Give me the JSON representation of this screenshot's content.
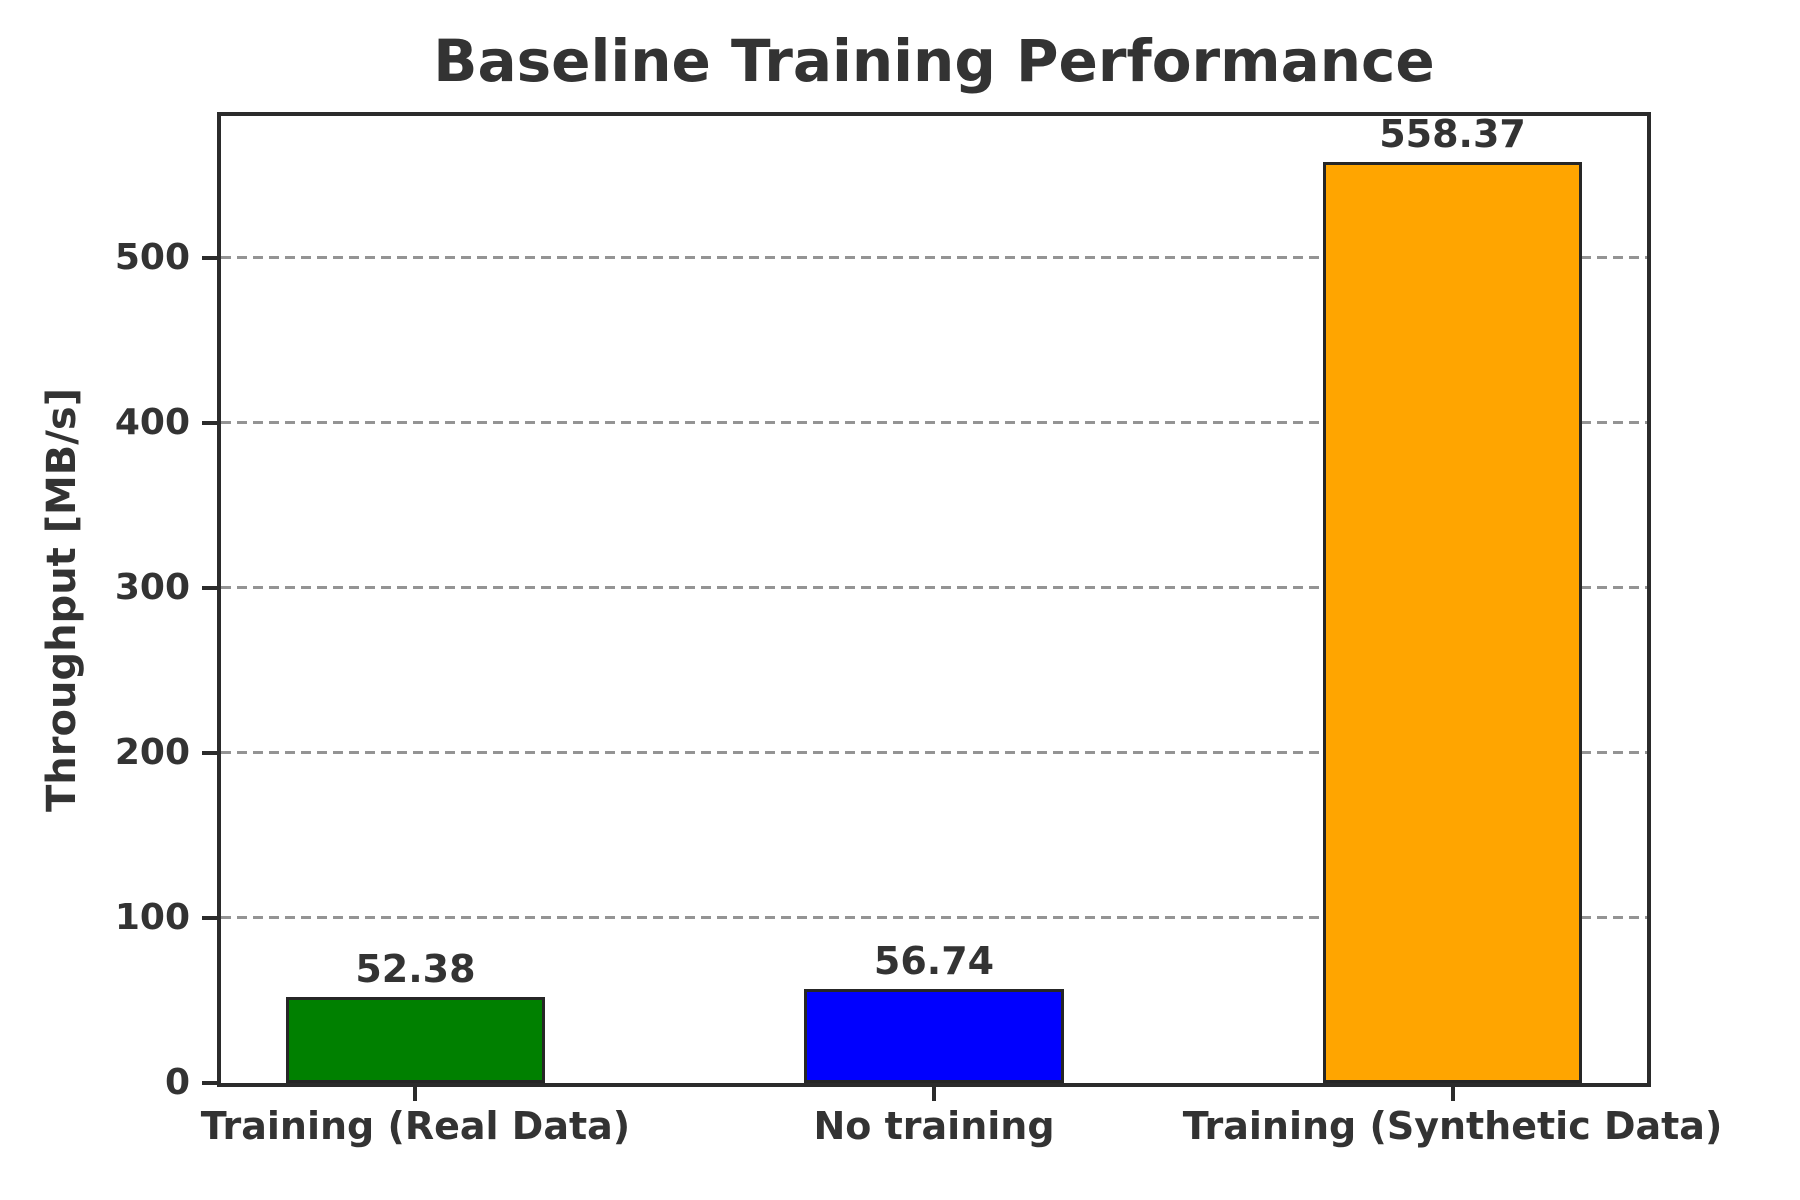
{
  "chart_data": {
    "type": "bar",
    "title": "Baseline Training Performance",
    "ylabel": "Throughput [MB/s]",
    "xlabel": "",
    "categories": [
      "Training (Real Data)",
      "No training",
      "Training (Synthetic Data)"
    ],
    "values": [
      52.38,
      56.74,
      558.37
    ],
    "value_labels": [
      "52.38",
      "56.74",
      "558.37"
    ],
    "bar_colors": [
      "#008000",
      "#0000ff",
      "#ffa500"
    ],
    "yticks": [
      0,
      100,
      200,
      300,
      400,
      500
    ],
    "ytick_labels": [
      "0",
      "100",
      "200",
      "300",
      "400",
      "500"
    ],
    "ylim": [
      0,
      586
    ],
    "grid": {
      "axis": "y",
      "style": "dashed",
      "color": "#949494"
    },
    "legend": "none",
    "colors": {
      "text": "#333333",
      "spine": "#2b2b2b",
      "bar_edge": "#262626",
      "background": "#ffffff"
    }
  }
}
